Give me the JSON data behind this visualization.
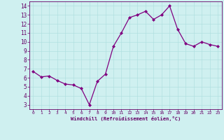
{
  "x": [
    0,
    1,
    2,
    3,
    4,
    5,
    6,
    7,
    8,
    9,
    10,
    11,
    12,
    13,
    14,
    15,
    16,
    17,
    18,
    19,
    20,
    21,
    22,
    23
  ],
  "y": [
    6.7,
    6.1,
    6.2,
    5.7,
    5.3,
    5.2,
    4.8,
    3.0,
    5.6,
    6.4,
    9.5,
    11.0,
    12.7,
    13.0,
    13.4,
    12.5,
    13.0,
    14.0,
    11.4,
    9.8,
    9.5,
    10.0,
    9.7,
    9.5
  ],
  "color": "#800080",
  "bg_color": "#cff0f0",
  "grid_color": "#aadddd",
  "xlabel": "Windchill (Refroidissement éolien,°C)",
  "ylim": [
    2.5,
    14.5
  ],
  "xlim": [
    -0.5,
    23.5
  ],
  "yticks": [
    3,
    4,
    5,
    6,
    7,
    8,
    9,
    10,
    11,
    12,
    13,
    14
  ],
  "xticks": [
    0,
    1,
    2,
    3,
    4,
    5,
    6,
    7,
    8,
    9,
    10,
    11,
    12,
    13,
    14,
    15,
    16,
    17,
    18,
    19,
    20,
    21,
    22,
    23
  ],
  "marker": "D",
  "markersize": 2.0,
  "linewidth": 0.9
}
